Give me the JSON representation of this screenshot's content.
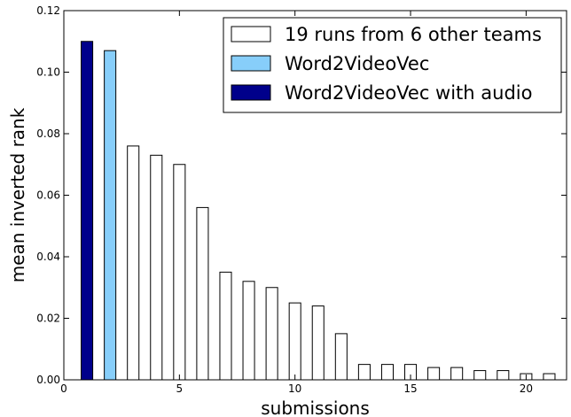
{
  "chart_data": {
    "type": "bar",
    "xlabel": "submissions",
    "ylabel": "mean inverted rank",
    "xlim": [
      0,
      21.75
    ],
    "ylim": [
      0,
      0.12
    ],
    "xticks": [
      0,
      5,
      10,
      15,
      20
    ],
    "xtick_labels": [
      "0",
      "5",
      "10",
      "15",
      "20"
    ],
    "yticks": [
      0,
      0.02,
      0.04,
      0.06,
      0.08,
      0.1,
      0.12
    ],
    "ytick_labels": [
      "0.00",
      "0.02",
      "0.04",
      "0.06",
      "0.08",
      "0.10",
      "0.12"
    ],
    "bar_width": 0.5,
    "grid": false,
    "legend_position": "top-right",
    "series": [
      {
        "name": "19 runs from 6 other teams",
        "color": "#ffffff",
        "x": [
          3,
          4,
          5,
          6,
          7,
          8,
          9,
          10,
          11,
          12,
          13,
          14,
          15,
          16,
          17,
          18,
          19,
          20,
          21
        ],
        "values": [
          0.076,
          0.073,
          0.07,
          0.056,
          0.035,
          0.032,
          0.03,
          0.025,
          0.024,
          0.015,
          0.005,
          0.005,
          0.005,
          0.004,
          0.004,
          0.003,
          0.003,
          0.002,
          0.002
        ]
      },
      {
        "name": "Word2VideoVec",
        "color": "#87cefa",
        "x": [
          2
        ],
        "values": [
          0.107
        ]
      },
      {
        "name": "Word2VideoVec with audio",
        "color": "#00008b",
        "x": [
          1
        ],
        "values": [
          0.11
        ]
      }
    ]
  }
}
